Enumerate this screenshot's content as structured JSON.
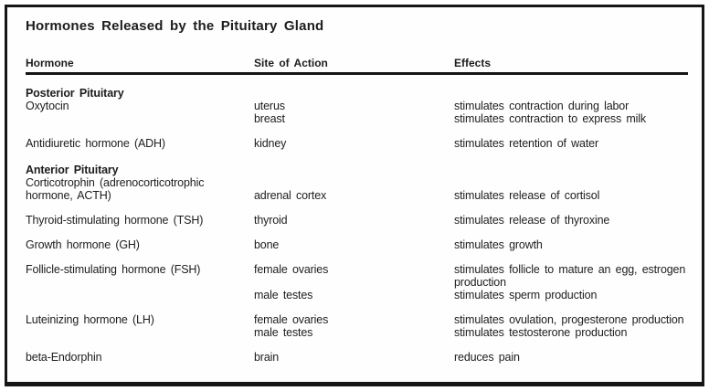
{
  "title": "Hormones Released by the Pituitary Gland",
  "columns": {
    "hormone": "Hormone",
    "site": "Site of Action",
    "effects": "Effects"
  },
  "sections": [
    {
      "heading": "Posterior Pituitary",
      "rows": [
        {
          "hormone": "Oxytocin",
          "entries": [
            {
              "site": "uterus",
              "effect": "stimulates contraction during labor"
            },
            {
              "site": "breast",
              "effect": "stimulates contraction to express milk"
            }
          ]
        },
        {
          "hormone": "Antidiuretic hormone (ADH)",
          "entries": [
            {
              "site": "kidney",
              "effect": "stimulates retention of water"
            }
          ]
        }
      ]
    },
    {
      "heading": "Anterior Pituitary",
      "rows": [
        {
          "hormone_line1": "Corticotrophin (adrenocorticotrophic",
          "hormone_line2": "hormone, ACTH)",
          "entries": [
            {
              "site": "adrenal cortex",
              "effect": "stimulates release of cortisol"
            }
          ]
        },
        {
          "hormone": "Thyroid-stimulating hormone (TSH)",
          "entries": [
            {
              "site": "thyroid",
              "effect": "stimulates release of thyroxine"
            }
          ]
        },
        {
          "hormone": "Growth hormone (GH)",
          "entries": [
            {
              "site": "bone",
              "effect": "stimulates growth"
            }
          ]
        },
        {
          "hormone": "Follicle-stimulating hormone (FSH)",
          "entries": [
            {
              "site": "female ovaries",
              "effect": "stimulates follicle to mature an egg, estrogen production"
            },
            {
              "site": "male testes",
              "effect": "stimulates sperm production"
            }
          ]
        },
        {
          "hormone": "Luteinizing hormone (LH)",
          "entries": [
            {
              "site": "female ovaries",
              "effect": "stimulates ovulation, progesterone production"
            },
            {
              "site": "male testes",
              "effect": "stimulates testosterone production"
            }
          ]
        },
        {
          "hormone": "beta-Endorphin",
          "entries": [
            {
              "site": "brain",
              "effect": "reduces pain"
            }
          ]
        }
      ]
    }
  ],
  "colors": {
    "text": "#1d1d1d",
    "border": "#161616",
    "background": "#ffffff"
  }
}
